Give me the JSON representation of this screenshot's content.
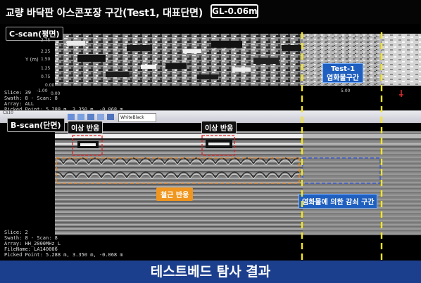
{
  "title": {
    "main": "교량 바닥판 아스콘포장 구간(Test1, 대표단면)",
    "gl": "GL-0.06m"
  },
  "cscan": {
    "label": "C-scan(평면)",
    "y_axis_label": "Y (m)",
    "ticks": [
      "2.75",
      "2.25",
      "1.50",
      "1.25",
      "0.75",
      "0.00",
      "-1.00",
      "0.00"
    ],
    "x_tick_right": "5.00",
    "info": {
      "slice": "Slice: 39",
      "swath": "Swath: 8 - Scan: 8",
      "array": "Array: ALL",
      "picked": "Picked Point: 5.288 m, 3.350 m, -0.068 m"
    },
    "test_label_line1": "Test-1",
    "test_label_line2": "염화물구간"
  },
  "toolbar": {
    "tab": "Cs10",
    "select_value": "WhiteBlack"
  },
  "bscan": {
    "label": "B-scan(단면)",
    "anomaly_left": "이상 반응",
    "anomaly_mid": "이상 반응",
    "rebar": "철근 반응",
    "attenuation": "염화물에 의한 감쇠 구간",
    "info": {
      "slice": "Slice:  2",
      "swath": "Swath: 8 - Scan: 8",
      "array": "Array: HH_2000MHz_L",
      "filename": "FileName: LA140006",
      "picked": "Picked Point: 5.288 m, 3.350 m, -0.068 m"
    }
  },
  "footer": {
    "caption": "테스트베드 탐사 결과"
  },
  "colors": {
    "dashed_yellow": "#f5e61e",
    "annotation_red": "#e02020",
    "annotation_orange": "#e8892a",
    "annotation_blue": "#2a4fd8",
    "footer_bg": "#1c3f8d"
  }
}
